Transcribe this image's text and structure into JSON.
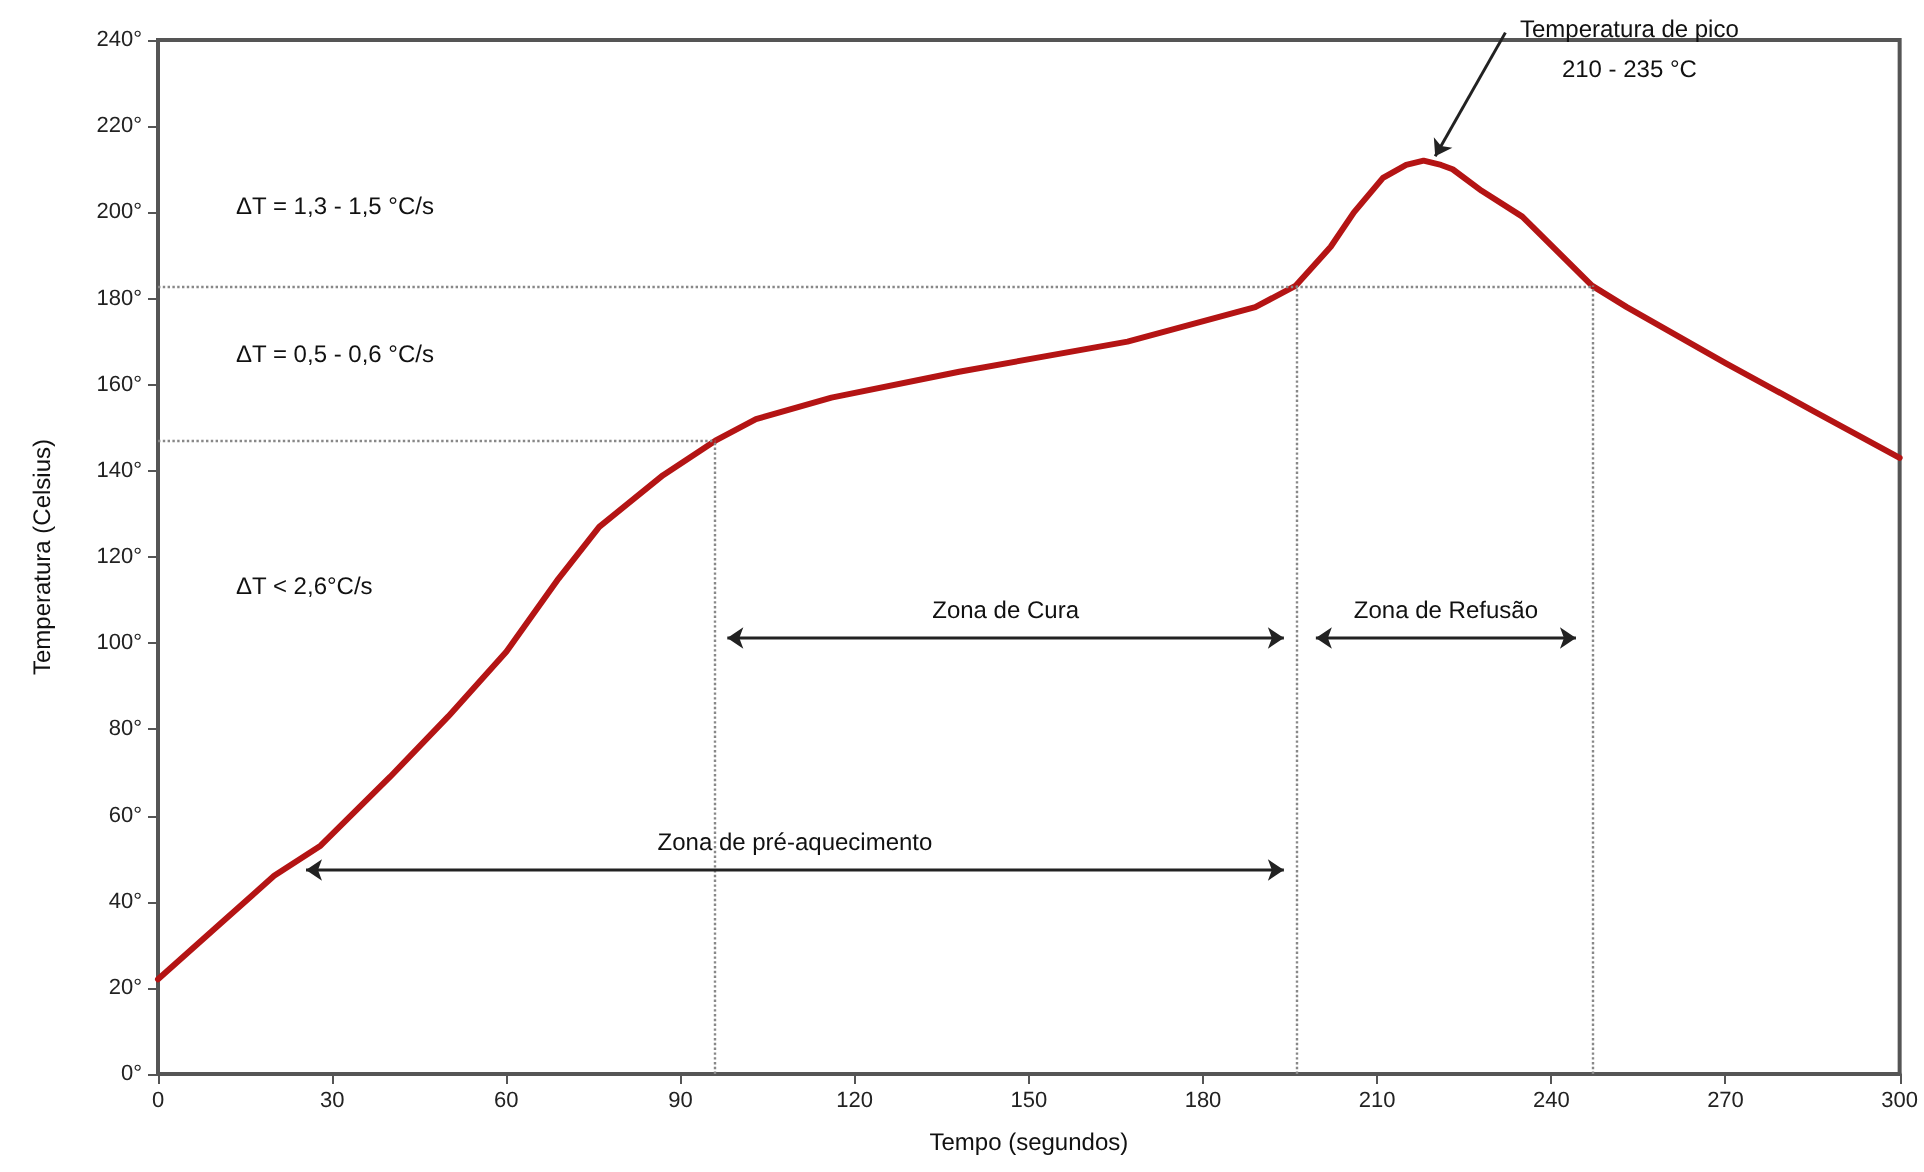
{
  "chart_data": {
    "type": "line",
    "xlabel": "Tempo (segundos)",
    "ylabel": "Temperatura (Celsius)",
    "x": [
      0,
      10,
      20,
      28,
      40,
      50,
      60,
      69,
      76,
      87,
      96,
      103,
      116,
      138,
      167,
      189,
      196,
      202,
      206,
      211,
      215,
      218,
      221,
      223,
      228,
      235,
      247,
      253,
      270,
      285,
      300
    ],
    "series": [
      {
        "color": "#b41414",
        "values": [
          22,
          34,
          46,
          53,
          69,
          83,
          98,
          115,
          127,
          139,
          147,
          152,
          157,
          163,
          170,
          178,
          183,
          192,
          200,
          208,
          211,
          212,
          211,
          210,
          205,
          199,
          183,
          178,
          165,
          154,
          143
        ]
      }
    ],
    "xlim": [
      0,
      300
    ],
    "xticks": [
      0,
      30,
      60,
      90,
      120,
      150,
      180,
      210,
      240,
      270,
      300
    ],
    "ylim": [
      0,
      240
    ],
    "yticks": [
      {
        "value": 0,
        "label": "0°"
      },
      {
        "value": 20,
        "label": "20°"
      },
      {
        "value": 40,
        "label": "40°"
      },
      {
        "value": 60,
        "label": "60°"
      },
      {
        "value": 80,
        "label": "80°"
      },
      {
        "value": 100,
        "label": "100°"
      },
      {
        "value": 120,
        "label": "120°"
      },
      {
        "value": 140,
        "label": "140°"
      },
      {
        "value": 160,
        "label": "160°"
      },
      {
        "value": 180,
        "label": "180°"
      },
      {
        "value": 200,
        "label": "200°"
      },
      {
        "value": 220,
        "label": "220°"
      },
      {
        "value": 240,
        "label": "240°"
      }
    ],
    "ref_lines": [
      {
        "axis": "x",
        "value": 96,
        "color": "#888888",
        "line_style": "dotted"
      },
      {
        "axis": "x",
        "value": 196,
        "color": "#888888",
        "line_style": "dotted"
      },
      {
        "axis": "x",
        "value": 247,
        "color": "#888888",
        "line_style": "dotted"
      },
      {
        "axis": "y",
        "value": 147,
        "color": "#888888",
        "line_style": "dotted"
      },
      {
        "axis": "y",
        "value": 183,
        "color": "#888888",
        "line_style": "dotted"
      }
    ],
    "annotations": [
      "ΔT = 1,3 - 1,5 °C/s",
      "ΔT = 0,5 - 0,6 °C/s",
      "ΔT < 2,6°C/s",
      "Zona de Cura",
      "Zona de Refusão",
      "Zona de pré-aquecimento",
      {
        "text": "Temperatura de pico\n210 - 235 °C",
        "x": 219,
        "y": 212
      }
    ],
    "grid": false,
    "marker": "none",
    "line_style": "solid"
  }
}
